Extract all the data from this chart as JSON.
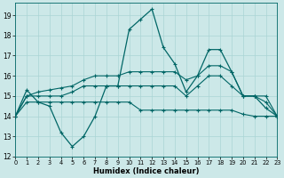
{
  "title": "",
  "xlabel": "Humidex (Indice chaleur)",
  "ylabel": "",
  "bg_color": "#cce8e8",
  "grid_color": "#aad4d4",
  "line_color": "#006666",
  "xlim": [
    0,
    23
  ],
  "ylim": [
    12,
    19.6
  ],
  "yticks": [
    12,
    13,
    14,
    15,
    16,
    17,
    18,
    19
  ],
  "xticks": [
    0,
    1,
    2,
    3,
    4,
    5,
    6,
    7,
    8,
    9,
    10,
    11,
    12,
    13,
    14,
    15,
    16,
    17,
    18,
    19,
    20,
    21,
    22,
    23
  ],
  "series1": [
    14.0,
    15.3,
    14.7,
    14.5,
    13.2,
    12.5,
    13.0,
    14.0,
    15.5,
    15.5,
    18.3,
    18.8,
    19.3,
    17.4,
    16.6,
    15.2,
    16.0,
    17.3,
    17.3,
    16.2,
    15.0,
    15.0,
    14.4,
    14.0
  ],
  "series2": [
    14.0,
    14.7,
    14.7,
    14.7,
    14.7,
    14.7,
    14.7,
    14.7,
    14.7,
    14.7,
    14.7,
    14.3,
    14.3,
    14.3,
    14.3,
    14.3,
    14.3,
    14.3,
    14.3,
    14.3,
    14.1,
    14.0,
    14.0,
    14.0
  ],
  "series3": [
    14.0,
    15.0,
    15.0,
    15.0,
    15.0,
    15.2,
    15.5,
    15.5,
    15.5,
    15.5,
    15.5,
    15.5,
    15.5,
    15.5,
    15.5,
    15.0,
    15.5,
    16.0,
    16.0,
    15.5,
    15.0,
    15.0,
    14.7,
    14.0
  ],
  "series4": [
    14.0,
    15.0,
    15.2,
    15.3,
    15.4,
    15.5,
    15.8,
    16.0,
    16.0,
    16.0,
    16.2,
    16.2,
    16.2,
    16.2,
    16.2,
    15.8,
    16.0,
    16.5,
    16.5,
    16.2,
    15.0,
    15.0,
    15.0,
    14.0
  ]
}
